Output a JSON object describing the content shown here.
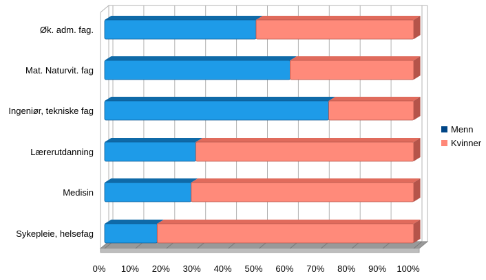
{
  "chart_data": {
    "type": "bar",
    "stacked": true,
    "orientation": "horizontal",
    "percent_stacked": true,
    "categories": [
      "Øk. adm. fag.",
      "Mat. Naturvit. fag",
      "Ingeniør, tekniske fag",
      "Lærerutdanning",
      "Medisin",
      "Sykepleie, helsefag"
    ],
    "series": [
      {
        "name": "Menn",
        "values": [
          49,
          60,
          72.5,
          29.5,
          28,
          17
        ]
      },
      {
        "name": "Kvinner",
        "values": [
          51,
          40,
          27.5,
          70.5,
          72,
          83
        ]
      }
    ],
    "xlim": [
      0,
      100
    ],
    "xticks": [
      "0%",
      "10%",
      "20%",
      "30%",
      "40%",
      "50%",
      "60%",
      "70%",
      "80%",
      "90%",
      "100%"
    ],
    "legend": {
      "position": "right",
      "entries": [
        "Menn",
        "Kvinner"
      ]
    },
    "grid": true,
    "title": "",
    "xlabel": "",
    "ylabel": ""
  },
  "colors": {
    "menn_front": "#1e9be8",
    "menn_top": "#0f6aa8",
    "menn_side": "#0b5a93",
    "menn_legend": "#004586",
    "kvinner_front": "#ff8a7a",
    "kvinner_top": "#e06b5c",
    "kvinner_side": "#b5544a",
    "kvinner_legend": "#ff8878",
    "grid": "#b3b3b3",
    "floor": "#999999",
    "text": "#000000"
  }
}
